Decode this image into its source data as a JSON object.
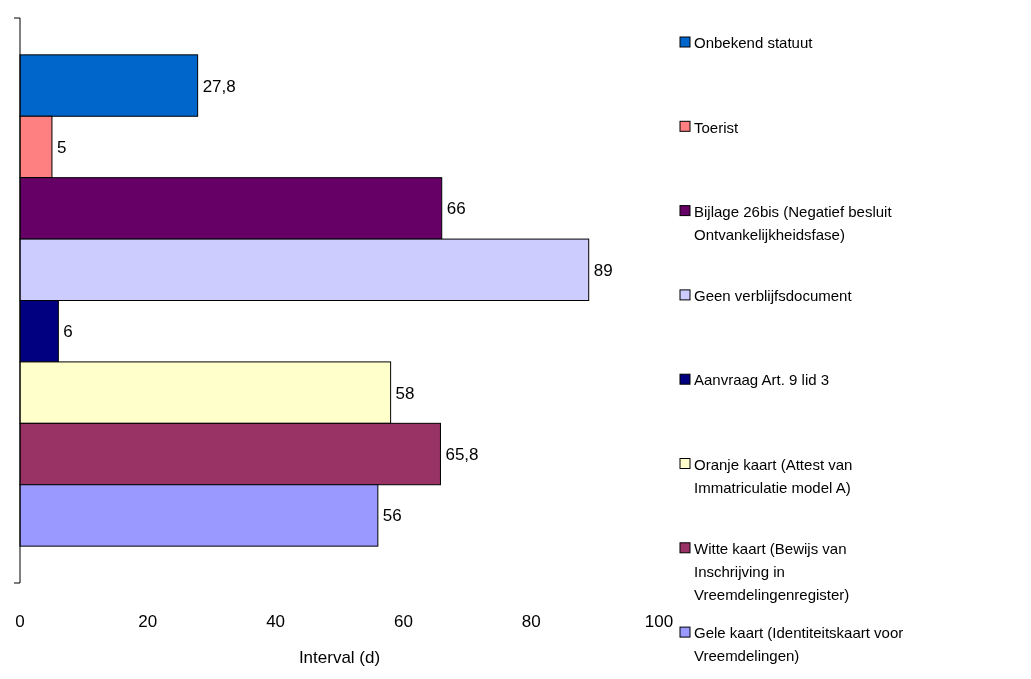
{
  "chart_data": {
    "type": "bar",
    "orientation": "horizontal",
    "xlabel": "Interval (d)",
    "categories": [
      null
    ],
    "xlim": [
      0,
      100
    ],
    "xticks": [
      0,
      20,
      40,
      60,
      80,
      100
    ],
    "grid": false,
    "legend": "right",
    "series": [
      {
        "name": "Onbekend statuut",
        "color": "#0066cc",
        "values": [
          27.8
        ],
        "value_labels": [
          "27,8"
        ]
      },
      {
        "name": "Toerist",
        "color": "#ff8080",
        "values": [
          5
        ],
        "value_labels": [
          "5"
        ]
      },
      {
        "name": "Bijlage 26bis (Negatief besluit Ontvankelijkheidsfase)",
        "color": "#660066",
        "values": [
          66
        ],
        "value_labels": [
          "66"
        ]
      },
      {
        "name": "Geen verblijfsdocument",
        "color": "#ccccff",
        "values": [
          89
        ],
        "value_labels": [
          "89"
        ]
      },
      {
        "name": "Aanvraag Art. 9 lid 3",
        "color": "#000080",
        "values": [
          6
        ],
        "value_labels": [
          "6"
        ]
      },
      {
        "name": "Oranje kaart (Attest van Immatriculatie model A)",
        "color": "#ffffcc",
        "values": [
          58
        ],
        "value_labels": [
          "58"
        ]
      },
      {
        "name": "Witte kaart (Bewijs van Inschrijving in Vreemdelingenregister)",
        "color": "#993366",
        "values": [
          65.8
        ],
        "value_labels": [
          "65,8"
        ]
      },
      {
        "name": "Gele kaart (Identiteitskaart voor Vreemdelingen)",
        "color": "#9999ff",
        "values": [
          56
        ],
        "value_labels": [
          "56"
        ]
      }
    ]
  }
}
